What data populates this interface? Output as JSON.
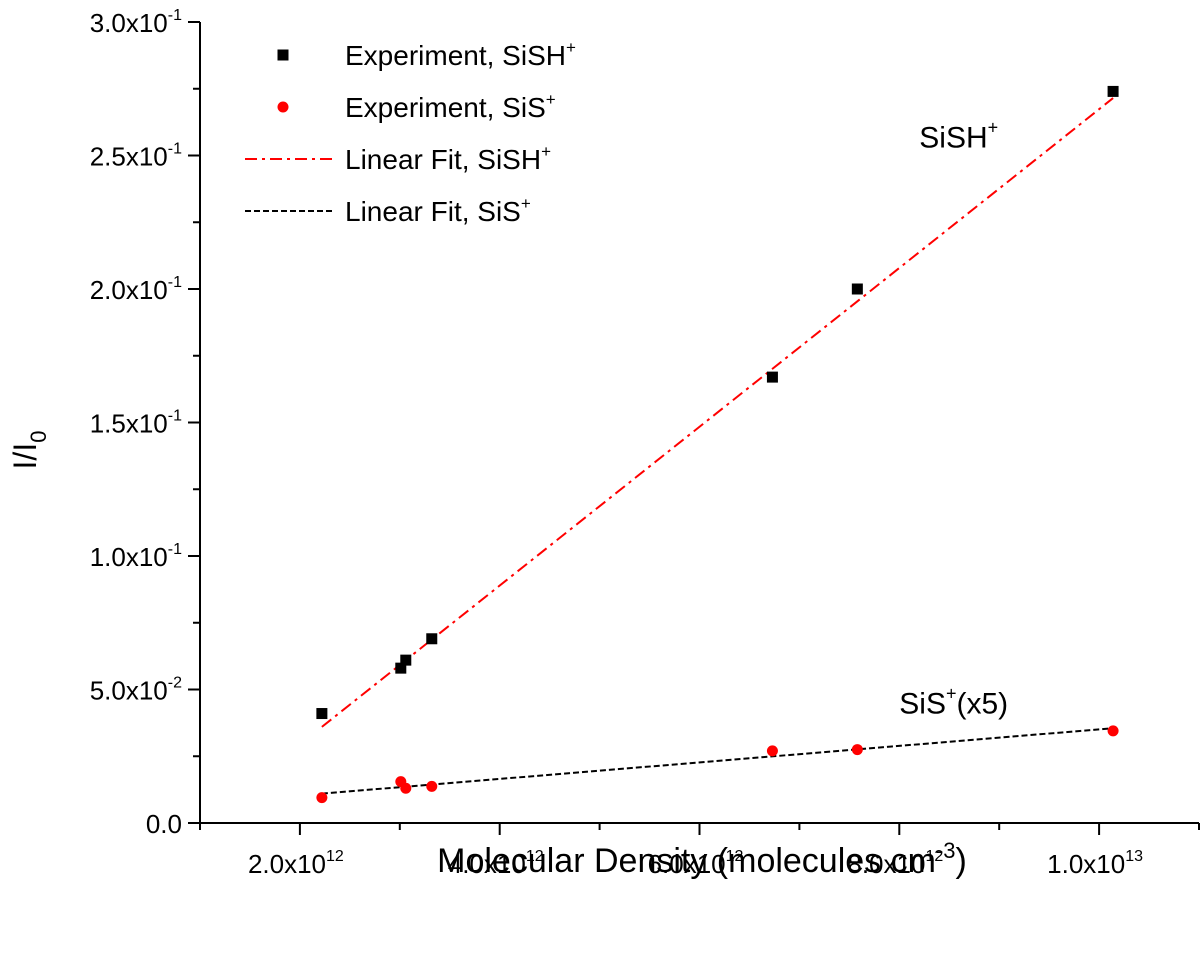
{
  "chart_data": {
    "type": "scatter",
    "xlabel": "Molecular Density (molecules cm",
    "xlabel_sup": "-3",
    "xlabel_tail": ")",
    "ylabel": "I/I",
    "ylabel_sub": "0",
    "xlim": [
      1000000000000.0,
      11000000000000.0
    ],
    "ylim": [
      0,
      0.3
    ],
    "x_ticks": [
      {
        "value": 2000000000000.0,
        "mant": "2.0x10",
        "exp": "12"
      },
      {
        "value": 4000000000000.0,
        "mant": "4.0x10",
        "exp": "12"
      },
      {
        "value": 6000000000000.0,
        "mant": "6.0x10",
        "exp": "12"
      },
      {
        "value": 8000000000000.0,
        "mant": "8.0x10",
        "exp": "12"
      },
      {
        "value": 10000000000000.0,
        "mant": "1.0x10",
        "exp": "13"
      }
    ],
    "x_minor_ticks": [
      1000000000000.0,
      3000000000000.0,
      5000000000000.0,
      7000000000000.0,
      9000000000000.0,
      11000000000000.0
    ],
    "y_ticks": [
      {
        "value": 0.0,
        "mant": "0.0",
        "exp": ""
      },
      {
        "value": 0.05,
        "mant": "5.0x10",
        "exp": "-2"
      },
      {
        "value": 0.1,
        "mant": "1.0x10",
        "exp": "-1"
      },
      {
        "value": 0.15,
        "mant": "1.5x10",
        "exp": "-1"
      },
      {
        "value": 0.2,
        "mant": "2.0x10",
        "exp": "-1"
      },
      {
        "value": 0.25,
        "mant": "2.5x10",
        "exp": "-1"
      },
      {
        "value": 0.3,
        "mant": "3.0x10",
        "exp": "-1"
      }
    ],
    "y_minor_ticks": [
      0.025,
      0.075,
      0.125,
      0.175,
      0.225,
      0.275
    ],
    "series": [
      {
        "name": "Experiment, SiSH",
        "name_sup": "+",
        "kind": "scatter",
        "marker": "square",
        "color": "#000000",
        "points": [
          {
            "x": 2220000000000.0,
            "y": 0.041
          },
          {
            "x": 3010000000000.0,
            "y": 0.058
          },
          {
            "x": 3060000000000.0,
            "y": 0.061
          },
          {
            "x": 3320000000000.0,
            "y": 0.069
          },
          {
            "x": 6730000000000.0,
            "y": 0.167
          },
          {
            "x": 7580000000000.0,
            "y": 0.2
          },
          {
            "x": 10140000000000.0,
            "y": 0.274
          }
        ]
      },
      {
        "name": "Experiment, SiS",
        "name_sup": "+",
        "kind": "scatter",
        "marker": "circle",
        "color": "#ff0000",
        "points": [
          {
            "x": 2220000000000.0,
            "y": 0.0095
          },
          {
            "x": 3010000000000.0,
            "y": 0.0155
          },
          {
            "x": 3060000000000.0,
            "y": 0.013
          },
          {
            "x": 3320000000000.0,
            "y": 0.0137
          },
          {
            "x": 6730000000000.0,
            "y": 0.027
          },
          {
            "x": 7580000000000.0,
            "y": 0.0275
          },
          {
            "x": 10140000000000.0,
            "y": 0.0345
          }
        ]
      },
      {
        "name": "Linear Fit, SiSH",
        "name_sup": "+",
        "kind": "line",
        "dash": "dashdot",
        "color": "#ff0000",
        "points": [
          {
            "x": 2220000000000.0,
            "y": 0.036
          },
          {
            "x": 10140000000000.0,
            "y": 0.2715
          }
        ]
      },
      {
        "name": "Linear Fit, SiS",
        "name_sup": "+",
        "kind": "line",
        "dash": "dash",
        "color": "#000000",
        "points": [
          {
            "x": 2220000000000.0,
            "y": 0.011
          },
          {
            "x": 10140000000000.0,
            "y": 0.0355
          }
        ]
      }
    ],
    "annotations": [
      {
        "text": "SiSH",
        "sup": "+",
        "suffix": "",
        "x": 8200000000000.0,
        "y": 0.253
      },
      {
        "text": "SiS",
        "sup": "+",
        "suffix": "(x5)",
        "x": 8000000000000.0,
        "y": 0.041
      }
    ],
    "legend_position": "top-left"
  }
}
